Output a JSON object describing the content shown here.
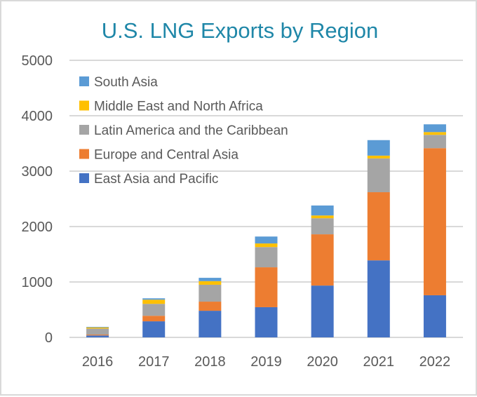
{
  "chart_data": {
    "type": "bar",
    "stacked": true,
    "title": "U.S. LNG Exports by Region",
    "xlabel": "",
    "ylabel": "",
    "ylim": [
      0,
      5000
    ],
    "yticks": [
      0,
      1000,
      2000,
      3000,
      4000,
      5000
    ],
    "ytick_labels": [
      "0",
      "1000",
      "2000",
      "3000",
      "4000",
      "5000"
    ],
    "grid": true,
    "legend_position": "top-left",
    "categories": [
      "2016",
      "2017",
      "2018",
      "2019",
      "2020",
      "2021",
      "2022"
    ],
    "series": [
      {
        "name": "East Asia and Pacific",
        "color": "#4472c4",
        "values": [
          35,
          290,
          480,
          545,
          935,
          1390,
          760
        ]
      },
      {
        "name": "Europe and Central Asia",
        "color": "#ed7d31",
        "values": [
          15,
          100,
          165,
          720,
          925,
          1230,
          2655
        ]
      },
      {
        "name": "Latin America and the Caribbean",
        "color": "#a5a5a5",
        "values": [
          110,
          215,
          305,
          365,
          290,
          610,
          240
        ]
      },
      {
        "name": "Middle East and North Africa",
        "color": "#ffc000",
        "values": [
          20,
          75,
          65,
          65,
          50,
          50,
          50
        ]
      },
      {
        "name": "South Asia",
        "color": "#5b9bd5",
        "values": [
          10,
          25,
          60,
          125,
          180,
          280,
          140
        ]
      }
    ],
    "legend_order": [
      "South Asia",
      "Middle East and North Africa",
      "Latin America and the Caribbean",
      "Europe and Central Asia",
      "East Asia and Pacific"
    ]
  }
}
